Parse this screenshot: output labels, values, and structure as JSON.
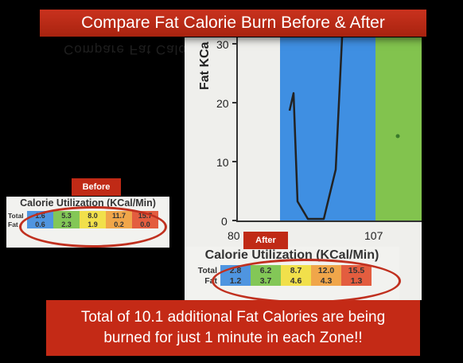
{
  "title": "Compare Fat Calorie Burn Before & After",
  "graph": {
    "ylabel": "Fat KCa",
    "y_ticks": [
      "0",
      "10",
      "20",
      "30"
    ],
    "x_ticks": [
      "80",
      "107"
    ],
    "zone_colors": {
      "blue": "#3f8fe2",
      "green": "#82c34e"
    }
  },
  "before": {
    "tag": "Before",
    "heading": "Calorie Utilization (KCal/Min)",
    "rows": [
      {
        "label": "Total",
        "values": [
          "1.6",
          "5.3",
          "8.0",
          "11.7",
          "15.7"
        ]
      },
      {
        "label": "Fat",
        "values": [
          "0.6",
          "2.3",
          "1.9",
          "0.2",
          "0.0"
        ]
      }
    ]
  },
  "after": {
    "tag": "After",
    "heading": "Calorie Utilization (KCal/Min)",
    "rows": [
      {
        "label": "Total",
        "values": [
          "2.8",
          "6.2",
          "8.7",
          "12.0",
          "15.5"
        ]
      },
      {
        "label": "Fat",
        "values": [
          "1.2",
          "3.7",
          "4.6",
          "4.3",
          "1.3"
        ]
      }
    ]
  },
  "zone_colors": [
    "#4f95e0",
    "#83c757",
    "#f1e04b",
    "#f0a64a",
    "#e35d3f"
  ],
  "summary": {
    "line1": "Total of 10.1 additional Fat Calories are being",
    "line2": "burned for just 1 minute in each Zone!!"
  }
}
